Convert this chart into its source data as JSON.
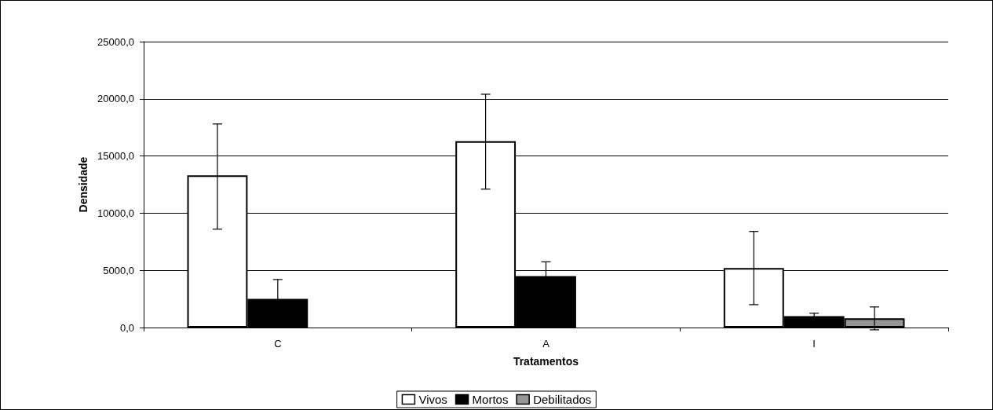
{
  "chart_data": {
    "type": "bar",
    "xlabel": "Tratamentos",
    "ylabel": "Densidade",
    "categories": [
      "C",
      "A",
      "I"
    ],
    "series": [
      {
        "name": "Vivos",
        "color": "#ffffff",
        "values": [
          13300,
          16300,
          5200
        ],
        "errors": [
          [
            8600,
            17800
          ],
          [
            12100,
            20400
          ],
          [
            2000,
            8400
          ]
        ]
      },
      {
        "name": "Mortos",
        "color": "#000000",
        "values": [
          2500,
          4500,
          1000
        ],
        "errors": [
          1700,
          1250,
          250
        ]
      },
      {
        "name": "Debilitados",
        "color": "#969696",
        "values": [
          0,
          0,
          800
        ],
        "errors": [
          null,
          null,
          1000
        ]
      }
    ],
    "ylim": [
      0,
      25000
    ],
    "yticks": [
      {
        "value": 0,
        "label": "0,0"
      },
      {
        "value": 5000,
        "label": "5000,0"
      },
      {
        "value": 10000,
        "label": "10000,0"
      },
      {
        "value": 15000,
        "label": "15000,0"
      },
      {
        "value": 20000,
        "label": "20000,0"
      },
      {
        "value": 25000,
        "label": "25000,0"
      }
    ],
    "grid": "y",
    "legend": "bottom"
  }
}
